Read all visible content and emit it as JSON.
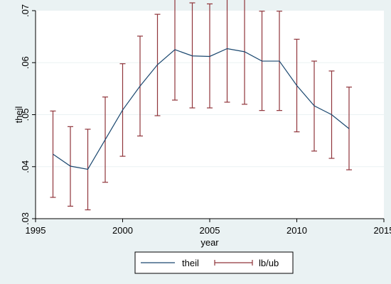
{
  "chart_data": {
    "type": "line",
    "xlabel": "year",
    "ylabel": "theil",
    "xlim": [
      1995,
      2015
    ],
    "ylim": [
      0.03,
      0.07
    ],
    "x_ticks": [
      1995,
      2000,
      2005,
      2010,
      2015
    ],
    "x_tick_labels": [
      "1995",
      "2000",
      "2005",
      "2010",
      "2015"
    ],
    "y_ticks": [
      0.03,
      0.04,
      0.05,
      0.06,
      0.07
    ],
    "y_tick_labels": [
      ".03",
      ".04",
      ".05",
      ".06",
      ".07"
    ],
    "grid": "horizontal",
    "legend_position": "bottom",
    "series": [
      {
        "name": "theil",
        "kind": "line",
        "color": "#1a476f",
        "x": [
          1996,
          1997,
          1998,
          1999,
          2000,
          2001,
          2002,
          2003,
          2004,
          2005,
          2006,
          2007,
          2008,
          2009,
          2010,
          2011,
          2012,
          2013
        ],
        "y": [
          0.0424,
          0.0401,
          0.0395,
          0.0452,
          0.0509,
          0.0555,
          0.0596,
          0.0625,
          0.0613,
          0.0612,
          0.0627,
          0.0621,
          0.0603,
          0.0603,
          0.0556,
          0.0517,
          0.05,
          0.0473
        ]
      },
      {
        "name": "lb/ub",
        "kind": "rcap",
        "color": "#90353b",
        "x": [
          1996,
          1997,
          1998,
          1999,
          2000,
          2001,
          2002,
          2003,
          2004,
          2005,
          2006,
          2007,
          2008,
          2009,
          2010,
          2011,
          2012,
          2013
        ],
        "lb": [
          0.0341,
          0.0324,
          0.0317,
          0.037,
          0.042,
          0.0459,
          0.0498,
          0.0528,
          0.0513,
          0.0513,
          0.0524,
          0.052,
          0.0508,
          0.0508,
          0.0467,
          0.043,
          0.0416,
          0.0394
        ],
        "ub": [
          0.0507,
          0.0477,
          0.0472,
          0.0534,
          0.0598,
          0.0651,
          0.0693,
          0.0723,
          0.0715,
          0.0713,
          0.073,
          0.0722,
          0.0699,
          0.0699,
          0.0645,
          0.0603,
          0.0584,
          0.0553
        ]
      }
    ]
  }
}
